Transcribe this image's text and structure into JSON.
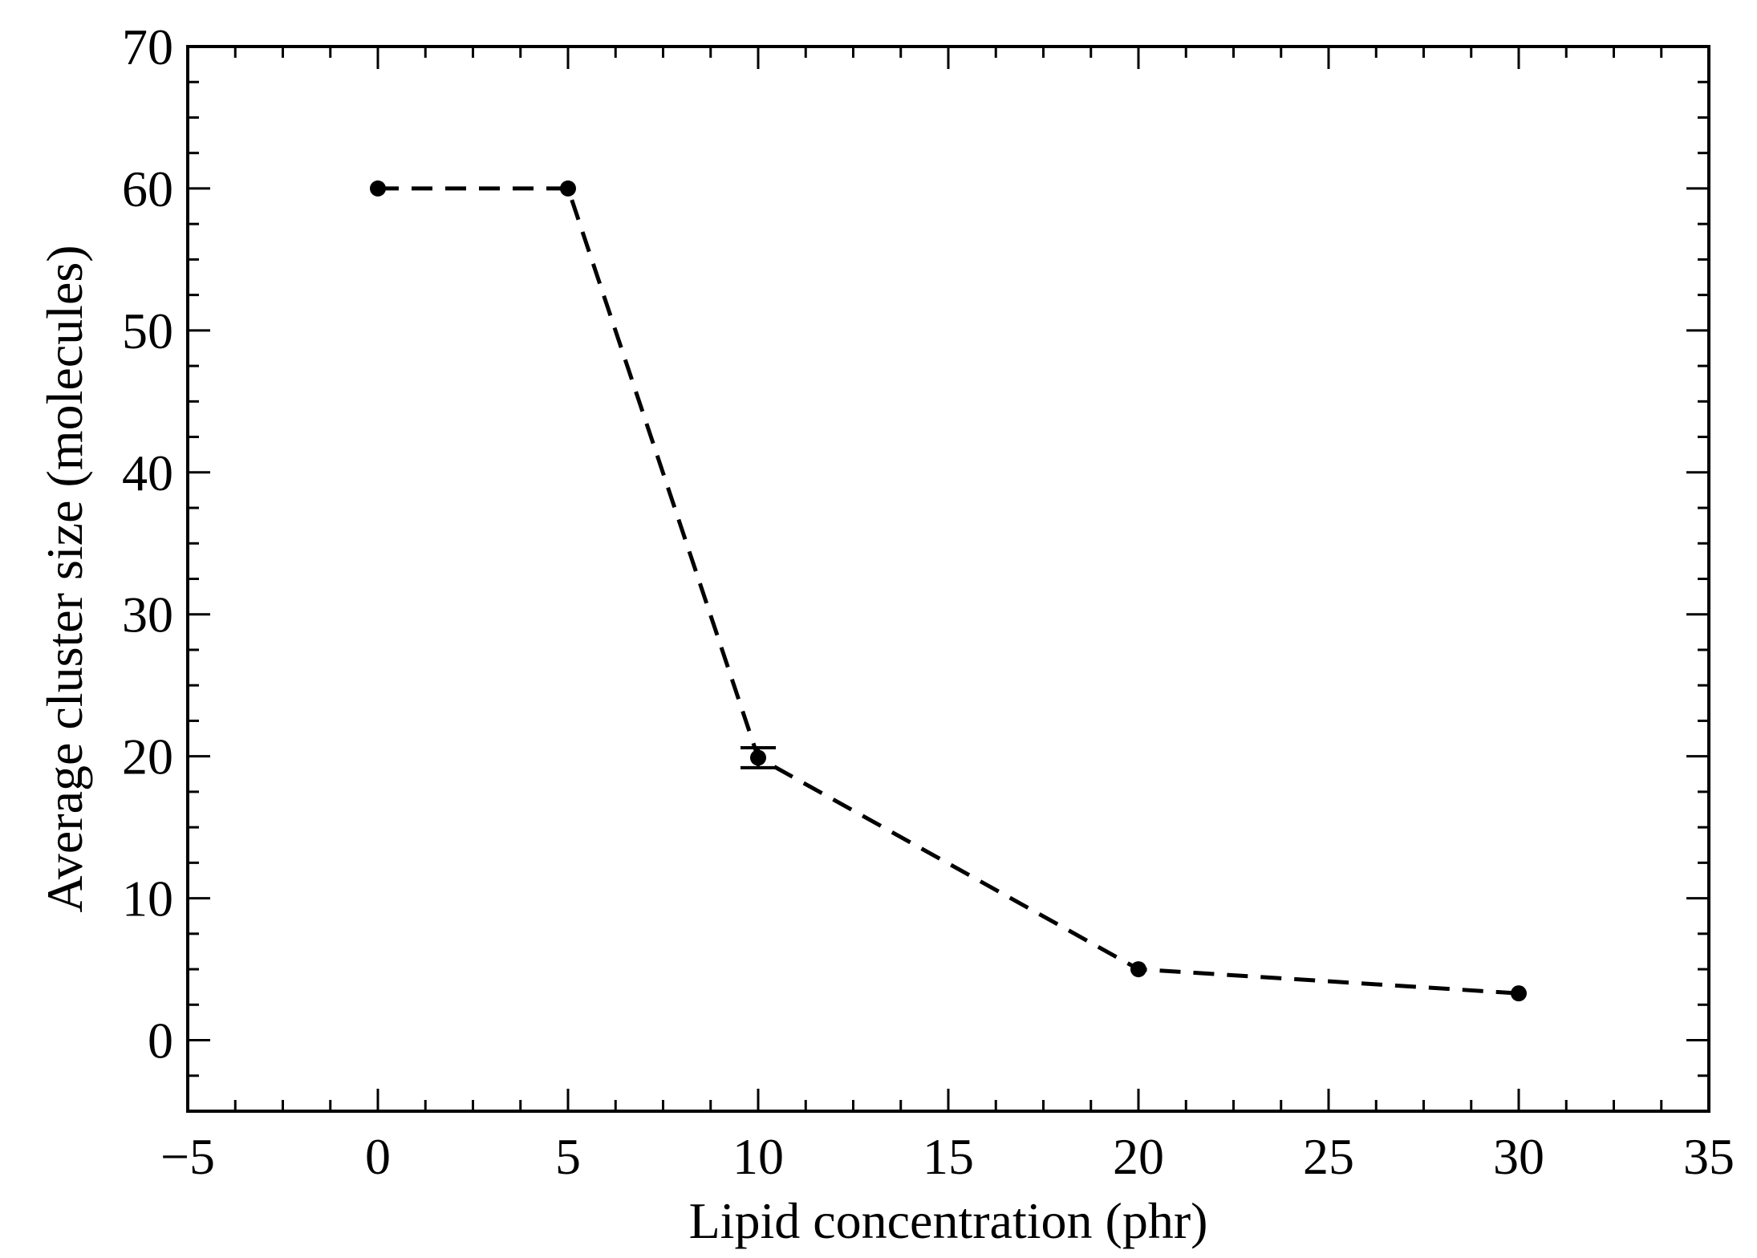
{
  "chart_data": {
    "type": "line",
    "title": "",
    "xlabel": "Lipid concentration (phr)",
    "ylabel": "Average cluster size (molecules)",
    "xlim": [
      -5,
      35
    ],
    "ylim": [
      -5,
      70
    ],
    "xticks": [
      -5,
      0,
      5,
      10,
      15,
      20,
      25,
      30,
      35
    ],
    "xtick_labels": [
      "−5",
      "0",
      "5",
      "10",
      "15",
      "20",
      "25",
      "30",
      "35"
    ],
    "yticks": [
      0,
      10,
      20,
      30,
      40,
      50,
      60,
      70
    ],
    "ytick_labels": [
      "0",
      "10",
      "20",
      "30",
      "40",
      "50",
      "60",
      "70"
    ],
    "x_minor_step": 1.25,
    "y_minor_step": 2.5,
    "grid": false,
    "legend": "none",
    "line_style": "dashed",
    "color": "#000000",
    "series": [
      {
        "x": [
          0,
          5,
          10,
          20,
          30
        ],
        "y": [
          60,
          60,
          19.9,
          5,
          3.3
        ],
        "error": [
          0,
          0,
          0.7,
          0,
          0
        ]
      }
    ]
  }
}
